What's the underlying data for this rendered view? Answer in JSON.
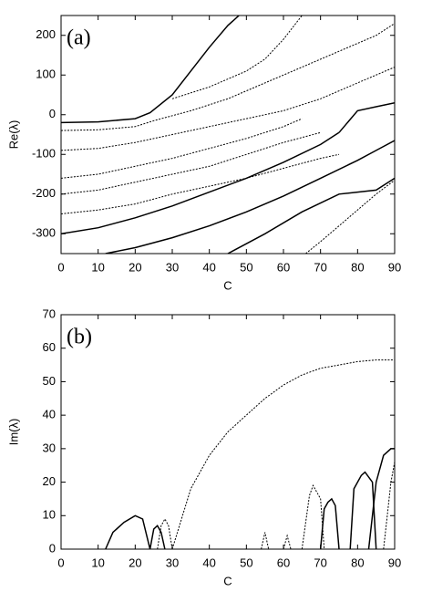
{
  "chart_data": [
    {
      "type": "line",
      "panel_label": "(a)",
      "xlabel": "C",
      "ylabel": "Re(λ)",
      "xlim": [
        0,
        90
      ],
      "ylim": [
        -350,
        250
      ],
      "xticks": [
        0,
        10,
        20,
        30,
        40,
        50,
        60,
        70,
        80,
        90
      ],
      "yticks": [
        -300,
        -200,
        -100,
        0,
        100,
        200
      ],
      "series": [
        {
          "color": "#000000",
          "dashed": false,
          "x": [
            0,
            10,
            20,
            30,
            40,
            50,
            60,
            70,
            75
          ],
          "values": [
            -300,
            -285,
            -260,
            -230,
            -195,
            -160,
            -120,
            -75,
            -45
          ]
        },
        {
          "color": "#000000",
          "dashed": false,
          "x": [
            0,
            10,
            20,
            24,
            30,
            35,
            40,
            45,
            48
          ],
          "values": [
            -20,
            -18,
            -10,
            5,
            50,
            110,
            170,
            225,
            250
          ]
        },
        {
          "color": "#000000",
          "dashed": true,
          "x": [
            0,
            10,
            20,
            25,
            35,
            45,
            55,
            65,
            75,
            85,
            90
          ],
          "values": [
            -40,
            -38,
            -30,
            -15,
            10,
            40,
            80,
            120,
            160,
            200,
            230
          ]
        },
        {
          "color": "#000000",
          "dashed": true,
          "x": [
            30,
            40,
            50,
            55,
            60,
            65
          ],
          "values": [
            40,
            70,
            110,
            140,
            190,
            250
          ]
        },
        {
          "color": "#000000",
          "dashed": true,
          "x": [
            0,
            10,
            20,
            30,
            40,
            50,
            60,
            70,
            80,
            90
          ],
          "values": [
            -90,
            -85,
            -70,
            -50,
            -30,
            -10,
            10,
            40,
            80,
            120
          ]
        },
        {
          "color": "#000000",
          "dashed": true,
          "x": [
            0,
            10,
            20,
            30,
            40,
            50,
            60,
            65
          ],
          "values": [
            -160,
            -150,
            -130,
            -110,
            -85,
            -60,
            -30,
            -10
          ]
        },
        {
          "color": "#000000",
          "dashed": true,
          "x": [
            0,
            10,
            20,
            30,
            40,
            50,
            60,
            70
          ],
          "values": [
            -200,
            -190,
            -170,
            -150,
            -130,
            -100,
            -70,
            -45
          ]
        },
        {
          "color": "#000000",
          "dashed": true,
          "x": [
            0,
            10,
            20,
            30,
            40,
            50,
            60,
            70,
            75
          ],
          "values": [
            -250,
            -240,
            -225,
            -200,
            -180,
            -160,
            -135,
            -110,
            -100
          ]
        },
        {
          "color": "#000000",
          "dashed": false,
          "x": [
            12,
            20,
            30,
            40,
            50,
            60,
            70,
            80,
            85,
            90
          ],
          "values": [
            -350,
            -335,
            -310,
            -280,
            -245,
            -205,
            -160,
            -115,
            -90,
            -65
          ]
        },
        {
          "color": "#000000",
          "dashed": false,
          "x": [
            45,
            55,
            65,
            75,
            85,
            90
          ],
          "values": [
            -350,
            -300,
            -245,
            -200,
            -190,
            -160
          ]
        },
        {
          "color": "#000000",
          "dashed": true,
          "x": [
            66,
            70,
            75,
            80,
            85,
            90
          ],
          "values": [
            -350,
            -320,
            -280,
            -240,
            -200,
            -165
          ]
        },
        {
          "color": "#000000",
          "dashed": false,
          "x": [
            75,
            80,
            85,
            90
          ],
          "values": [
            -45,
            10,
            20,
            30
          ]
        }
      ]
    },
    {
      "type": "line",
      "panel_label": "(b)",
      "xlabel": "C",
      "ylabel": "Im(λ)",
      "xlim": [
        0,
        90
      ],
      "ylim": [
        0,
        70
      ],
      "xticks": [
        0,
        10,
        20,
        30,
        40,
        50,
        60,
        70,
        80,
        90
      ],
      "yticks": [
        0,
        10,
        20,
        30,
        40,
        50,
        60,
        70
      ],
      "series": [
        {
          "color": "#000000",
          "dashed": true,
          "x": [
            30,
            35,
            40,
            45,
            50,
            55,
            60,
            65,
            70,
            75,
            80,
            85,
            90
          ],
          "values": [
            0,
            18,
            28,
            35,
            40,
            45,
            49,
            52,
            54,
            55,
            56,
            56.5,
            56.5
          ]
        },
        {
          "color": "#000000",
          "dashed": false,
          "x": [
            12,
            14,
            17,
            20,
            22,
            24
          ],
          "values": [
            0,
            5,
            8,
            10,
            9,
            0
          ]
        },
        {
          "color": "#000000",
          "dashed": false,
          "x": [
            24,
            25,
            26,
            27,
            28
          ],
          "values": [
            0,
            6,
            7,
            5,
            0
          ]
        },
        {
          "color": "#000000",
          "dashed": true,
          "x": [
            26,
            27,
            28,
            29,
            30
          ],
          "values": [
            0,
            7,
            9,
            7,
            0
          ]
        },
        {
          "color": "#000000",
          "dashed": true,
          "x": [
            54,
            55,
            56
          ],
          "values": [
            0,
            5,
            0
          ]
        },
        {
          "color": "#000000",
          "dashed": true,
          "x": [
            60,
            61,
            62
          ],
          "values": [
            0,
            4,
            0
          ]
        },
        {
          "color": "#000000",
          "dashed": true,
          "x": [
            65,
            67,
            68,
            70,
            71
          ],
          "values": [
            0,
            16,
            19,
            15,
            0
          ]
        },
        {
          "color": "#000000",
          "dashed": false,
          "x": [
            70,
            71,
            72,
            73,
            74,
            75
          ],
          "values": [
            0,
            12,
            14,
            15,
            13,
            0
          ]
        },
        {
          "color": "#000000",
          "dashed": false,
          "x": [
            78,
            79,
            81,
            82,
            84,
            85
          ],
          "values": [
            0,
            18,
            22,
            23,
            20,
            0
          ]
        },
        {
          "color": "#000000",
          "dashed": false,
          "x": [
            83,
            85,
            87,
            89,
            90
          ],
          "values": [
            0,
            20,
            28,
            30,
            30
          ]
        },
        {
          "color": "#000000",
          "dashed": true,
          "x": [
            87,
            88,
            89,
            90
          ],
          "values": [
            0,
            10,
            20,
            26
          ]
        }
      ]
    }
  ]
}
